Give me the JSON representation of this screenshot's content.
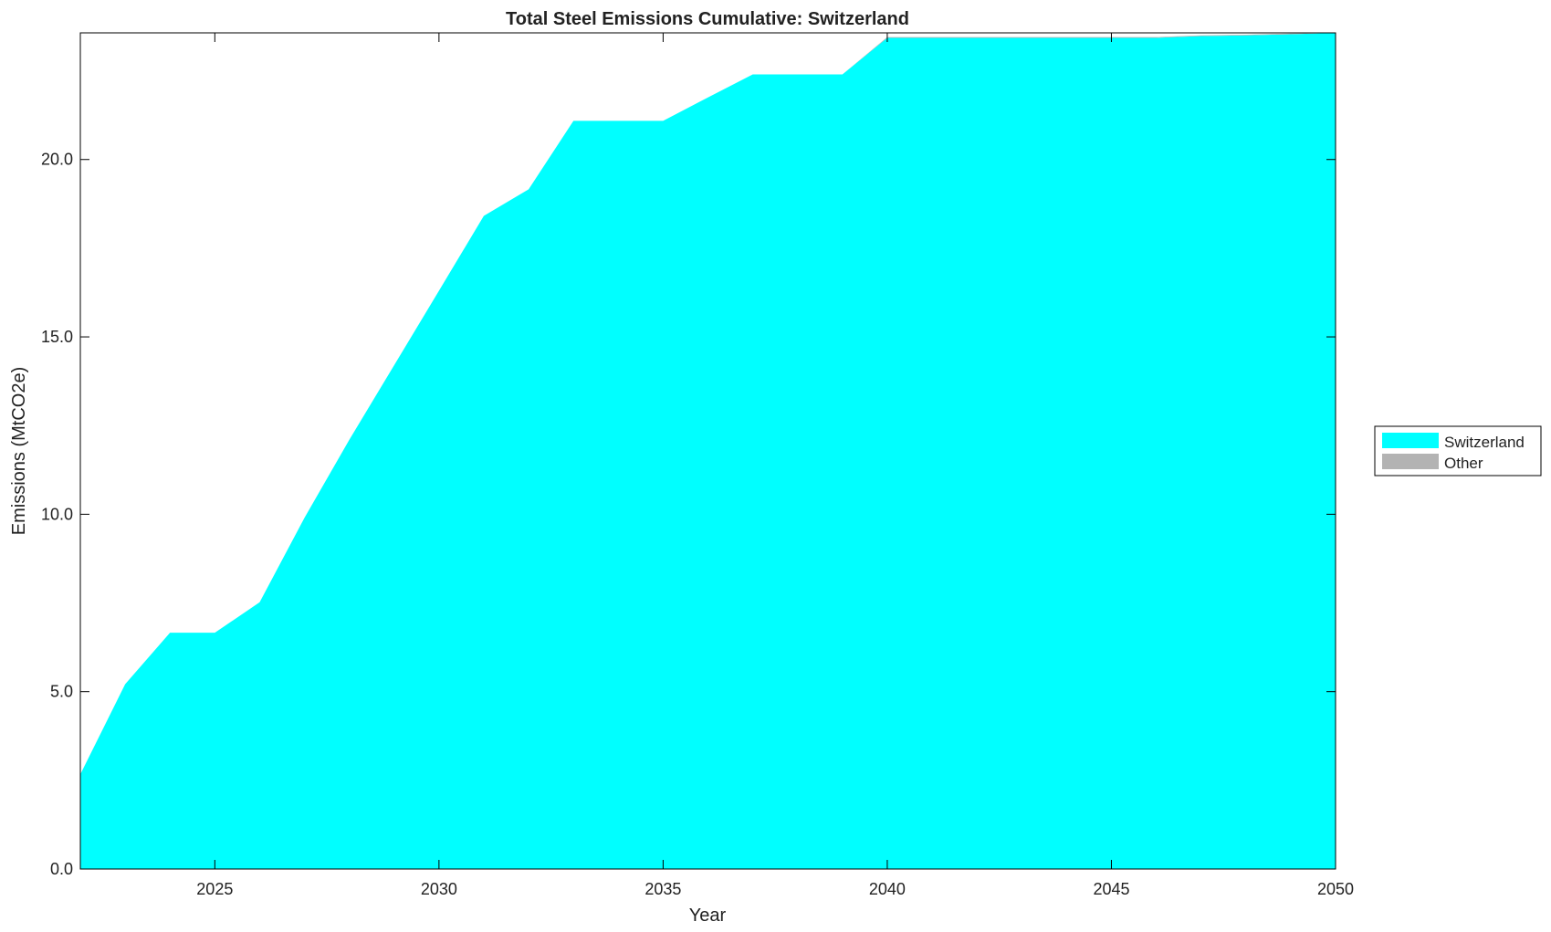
{
  "chart_data": {
    "type": "area",
    "stacked": true,
    "title": "Total Steel Emissions Cumulative: Switzerland",
    "xlabel": "Year",
    "ylabel": "Emissions (MtCO2e)",
    "xlim": [
      2022,
      2050
    ],
    "ylim": [
      0,
      23.57
    ],
    "xticks": [
      2025,
      2030,
      2035,
      2040,
      2045,
      2050
    ],
    "yticks": [
      0,
      5,
      10,
      15,
      20
    ],
    "ytick_labels": [
      "0.0",
      "5.0",
      "10.0",
      "15.0",
      "20.0"
    ],
    "grid": false,
    "legend_position": "right",
    "x": [
      2022,
      2023,
      2024,
      2025,
      2026,
      2027,
      2028,
      2029,
      2030,
      2031,
      2032,
      2033,
      2034,
      2035,
      2036,
      2037,
      2038,
      2039,
      2040,
      2041,
      2042,
      2043,
      2044,
      2045,
      2046,
      2047,
      2048,
      2049,
      2050
    ],
    "series": [
      {
        "name": "Switzerland",
        "color": "#00ffff",
        "values": [
          2.67,
          5.21,
          6.66,
          6.66,
          7.52,
          9.9,
          12.1,
          14.2,
          16.3,
          18.41,
          19.16,
          21.09,
          21.09,
          21.09,
          21.75,
          22.4,
          22.4,
          22.4,
          23.43,
          23.43,
          23.43,
          23.43,
          23.43,
          23.43,
          23.43,
          23.48,
          23.5,
          23.53,
          23.57
        ]
      },
      {
        "name": "Other",
        "color": "#b3b3b3",
        "values": [
          0,
          0,
          0,
          0,
          0,
          0,
          0,
          0,
          0,
          0,
          0,
          0,
          0,
          0,
          0,
          0,
          0,
          0,
          0.02,
          0.02,
          0.02,
          0.02,
          0.02,
          0.02,
          0.02,
          0.02,
          0.02,
          0.02,
          0
        ]
      }
    ]
  }
}
